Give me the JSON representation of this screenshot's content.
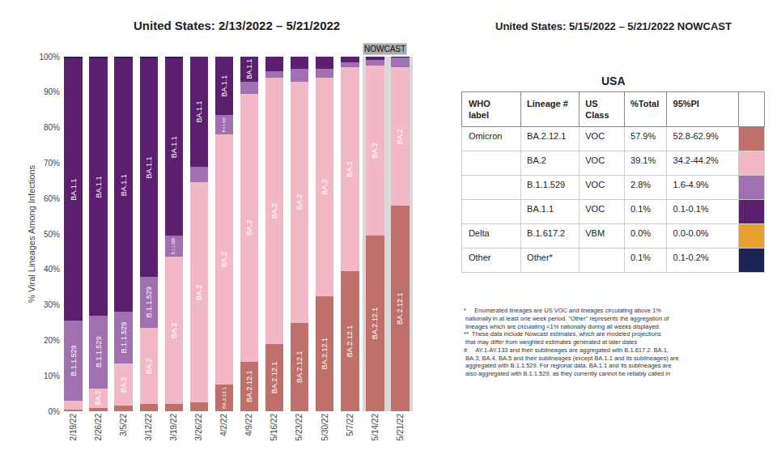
{
  "chart_data": [
    {
      "type": "bar",
      "stacked": true,
      "title": "United States: 2/13/2022 – 5/21/2022",
      "ylabel": "% Viral Lineages Among Infections",
      "categories": [
        "2/19/22",
        "2/26/22",
        "3/5/22",
        "3/12/22",
        "3/19/22",
        "3/26/22",
        "4/2/22",
        "4/9/22",
        "5/16/22",
        "5/23/22",
        "5/30/22",
        "5/7/22",
        "5/14/22",
        "5/21/22"
      ],
      "series": [
        {
          "name": "BA.2.12.1",
          "color": "#c0706a",
          "values": [
            0.5,
            1.0,
            1.5,
            2.0,
            2.0,
            2.5,
            7.5,
            14.0,
            19.0,
            25.0,
            32.5,
            39.5,
            49.5,
            57.9
          ]
        },
        {
          "name": "BA.2",
          "color": "#f2b8c6",
          "values": [
            2.5,
            5.5,
            12.0,
            21.5,
            41.5,
            62.0,
            70.5,
            75.5,
            75.0,
            68.0,
            61.5,
            57.5,
            48.0,
            39.1
          ]
        },
        {
          "name": "B.1.1.529",
          "color": "#a070b0",
          "values": [
            22.5,
            20.5,
            14.5,
            14.5,
            6.0,
            4.5,
            5.5,
            3.5,
            2.0,
            3.5,
            2.5,
            1.5,
            1.5,
            2.8
          ]
        },
        {
          "name": "BA.1.1",
          "color": "#5c1e6e",
          "values": [
            74.0,
            72.5,
            71.5,
            61.5,
            50.0,
            31.0,
            16.5,
            7.0,
            4.0,
            3.5,
            3.5,
            1.5,
            1.0,
            0.1
          ]
        },
        {
          "name": "Delta",
          "color": "#e8a030",
          "values": [
            0.0,
            0.0,
            0.0,
            0.0,
            0.0,
            0.0,
            0.0,
            0.0,
            0.0,
            0.0,
            0.0,
            0.0,
            0.0,
            0.0
          ]
        },
        {
          "name": "Other",
          "color": "#1a2456",
          "values": [
            0.5,
            0.5,
            0.5,
            0.5,
            0.5,
            0.0,
            0.0,
            0.0,
            0.0,
            0.0,
            0.0,
            0.0,
            0.0,
            0.1
          ]
        }
      ],
      "ylim": [
        0,
        100
      ],
      "yticks": [
        {
          "value": 0,
          "label": "0%"
        },
        {
          "value": 10,
          "label": "10%"
        },
        {
          "value": 20,
          "label": "20%"
        },
        {
          "value": 30,
          "label": "30%"
        },
        {
          "value": 40,
          "label": "40%"
        },
        {
          "value": 50,
          "label": "50%"
        },
        {
          "value": 60,
          "label": "60%"
        },
        {
          "value": 70,
          "label": "70%"
        },
        {
          "value": 80,
          "label": "80%"
        },
        {
          "value": 90,
          "label": "90%"
        },
        {
          "value": 100,
          "label": "100%"
        }
      ],
      "grid": false,
      "annotations": [
        {
          "text": "NOWCAST",
          "x": "5/14/22"
        }
      ]
    },
    {
      "type": "table",
      "title": "United States: 5/15/2022 – 5/21/2022 NOWCAST",
      "subtitle": "USA",
      "columns": [
        "WHO label",
        "Lineage #",
        "US Class",
        "%Total",
        "95%PI"
      ],
      "rows": [
        [
          "Omicron",
          "BA.2.12.1",
          "VOC",
          "57.9%",
          "52.8-62.9%"
        ],
        [
          null,
          "BA.2",
          "VOC",
          "39.1%",
          "34.2-44.2%"
        ],
        [
          null,
          "B.1.1.529",
          "VOC",
          "2.8%",
          "1.6-4.9%"
        ],
        [
          null,
          "BA.1.1",
          "VOC",
          "0.1%",
          "0.1-0.1%"
        ],
        [
          "Delta",
          "B.1.617.2",
          "VBM",
          "0.0%",
          "0.0-0.0%"
        ],
        [
          "Other",
          "Other*",
          null,
          "0.1%",
          "0.1-0.2%"
        ]
      ],
      "colors": [
        "#c0706a",
        "#f2b8c6",
        "#a070b0",
        "#5c1e6e",
        "#e8a030",
        "#1a2456"
      ],
      "annotations": [
        "*     Enumerated lineages are US VOC and lineages circulating above 1%\n nationally in at least one week period. \"Other\" represents the aggregation of\n lineages which are circulating <1% nationally during all weeks displayed.\n**  These data include Nowcast estimates, which are modeled projections\n that may differ from weighted estimates generated at later dates\n#     AY.1-AY.133 and their sublineages are aggregated with B.1.617.2. BA.1,\n BA.3, BA.4, BA.5 and their sublineages (except BA.1.1 and its sublineages) are\n aggregated with B.1.1.529. For regional data, BA.1.1 and its sublineages are\n also aggregated with B.1.1.529, as they currently cannot be reliably called in"
      ]
    }
  ]
}
